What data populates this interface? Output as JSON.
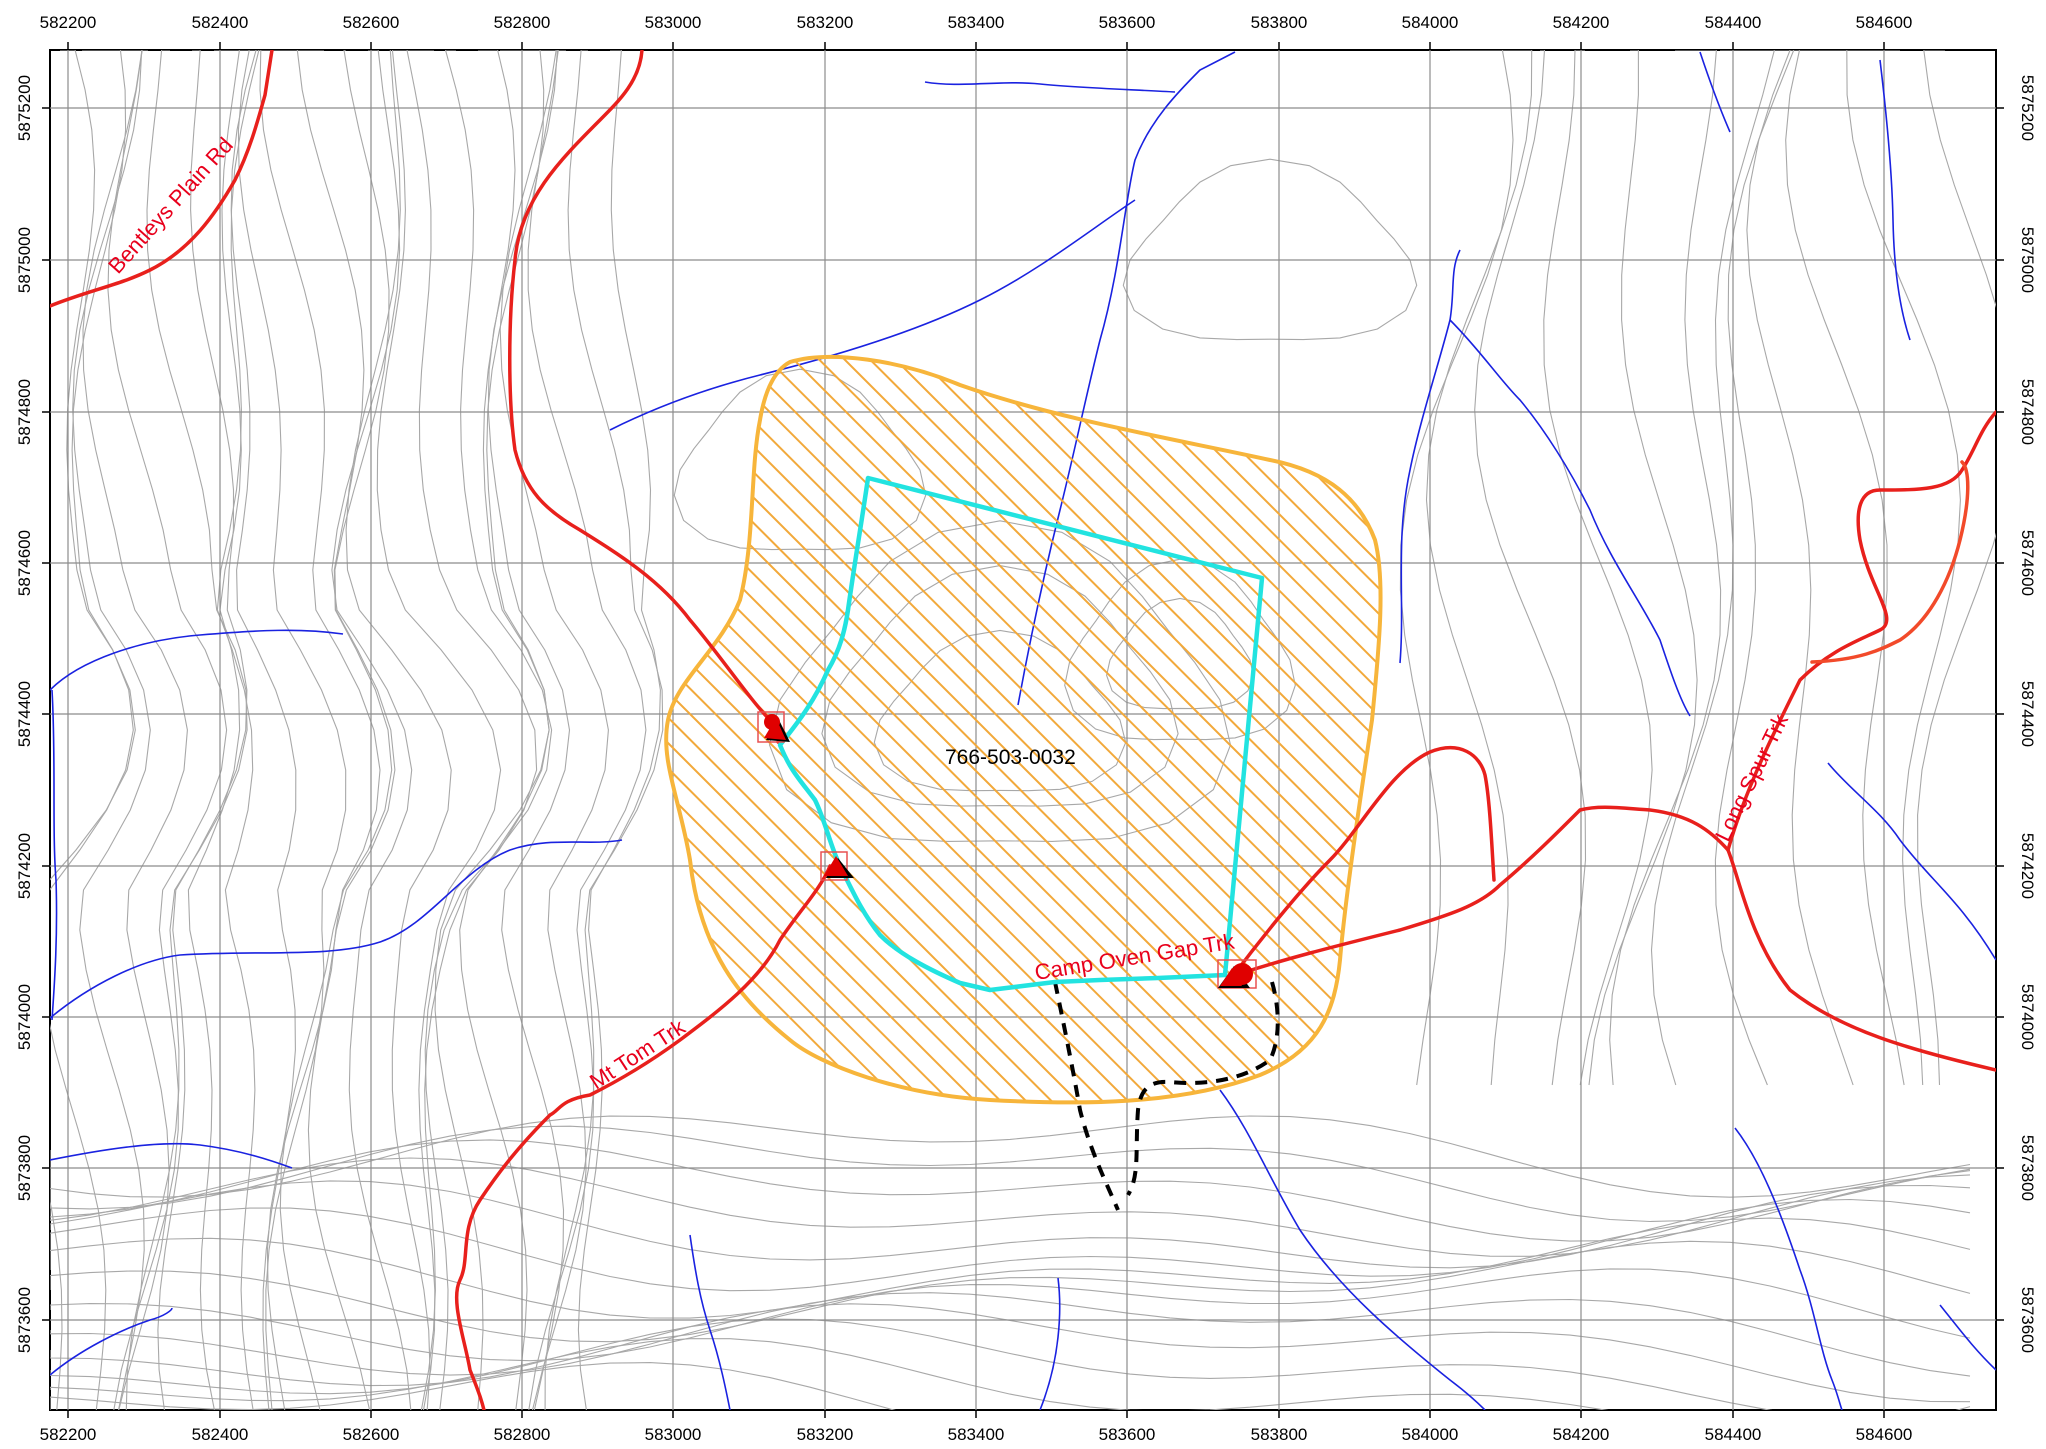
{
  "map": {
    "parcel_id": "766-503-0032",
    "roads": [
      {
        "name": "Bentleys Plain Rd",
        "key": "bentleys"
      },
      {
        "name": "Mt Tom Trk",
        "key": "mttom"
      },
      {
        "name": "Camp Oven Gap Trk",
        "key": "campoven"
      },
      {
        "name": "Long Spur Trk",
        "key": "longspur"
      }
    ],
    "easting_ticks": [
      "582200",
      "582400",
      "582600",
      "582800",
      "583000",
      "583200",
      "583400",
      "583600",
      "583800",
      "584000",
      "584200",
      "584400",
      "584600"
    ],
    "northing_ticks": [
      "5875200",
      "5875000",
      "5874800",
      "5874600",
      "5874400",
      "5874200",
      "5874000",
      "5873800",
      "5873600"
    ],
    "colors": {
      "road": "#e8201c",
      "stream": "#1a22e0",
      "contour": "#a8a8a8",
      "grid": "#8c8c8c",
      "buffer_stroke": "#f7b53b",
      "buffer_hatch": "#f2a93b",
      "parcel_boundary": "#22e3e0",
      "track_dashed": "#000000",
      "marker": "#e00000"
    },
    "icons": [
      "triangle-marker-icon",
      "circle-marker-icon"
    ]
  }
}
